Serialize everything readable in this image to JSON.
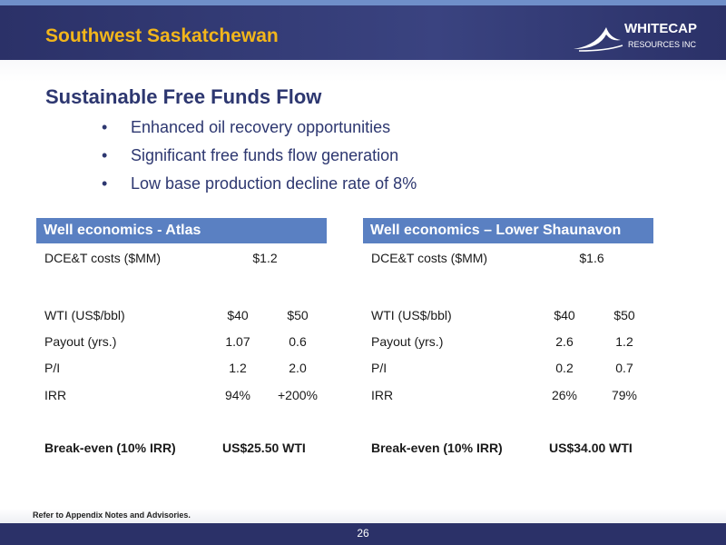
{
  "header": {
    "title": "Southwest Saskatchewan",
    "logo": {
      "name": "WHITECAP",
      "subtitle": "RESOURCES INC"
    }
  },
  "section": {
    "title": "Sustainable Free Funds Flow",
    "bullets": [
      "Enhanced oil recovery opportunities",
      "Significant free funds flow generation",
      "Low base production decline rate of 8%"
    ]
  },
  "tables": [
    {
      "title": "Well economics - Atlas",
      "rows": [
        [
          "DCE&T costs ($MM)",
          "$1.2"
        ],
        [
          "WTI (US$/bbl)",
          "$40",
          "$50"
        ],
        [
          "Payout (yrs.)",
          "1.07",
          "0.6"
        ],
        [
          "P/I",
          "1.2",
          "2.0"
        ],
        [
          "IRR",
          "94%",
          "+200%"
        ],
        [
          "Break-even (10% IRR)",
          "US$25.50 WTI"
        ]
      ]
    },
    {
      "title": "Well economics – Lower Shaunavon",
      "rows": [
        [
          "DCE&T costs ($MM)",
          "$1.6"
        ],
        [
          "WTI (US$/bbl)",
          "$40",
          "$50"
        ],
        [
          "Payout (yrs.)",
          "2.6",
          "1.2"
        ],
        [
          "P/I",
          "0.2",
          "0.7"
        ],
        [
          "IRR",
          "26%",
          "79%"
        ],
        [
          "Break-even (10% IRR)",
          "US$34.00 WTI"
        ]
      ]
    }
  ],
  "footer": {
    "note": "Refer to Appendix Notes and Advisories.",
    "page_number": "26"
  }
}
